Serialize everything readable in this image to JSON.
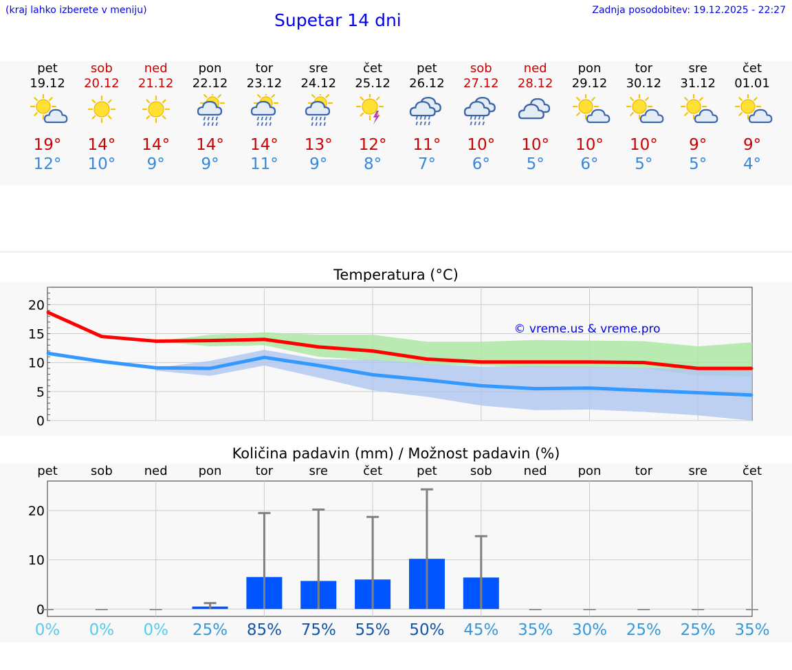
{
  "header": {
    "menu_hint": "(kraj lahko izberete v meniju)",
    "title": "Supetar 14 dni",
    "updated": "Zadnja posodobitev: 19.12.2025 - 22:27"
  },
  "colors": {
    "link": "#0000ee",
    "weekend": "#cc0000",
    "max_temp": "#cc0000",
    "min_temp": "#3388dd",
    "bar": "#0055ff"
  },
  "days": [
    {
      "name": "pet",
      "date": "19.12",
      "weekend": false,
      "icon": "sun-cloud-icon",
      "max": "19°",
      "min": "12°"
    },
    {
      "name": "sob",
      "date": "20.12",
      "weekend": true,
      "icon": "sun-icon",
      "max": "14°",
      "min": "10°"
    },
    {
      "name": "ned",
      "date": "21.12",
      "weekend": true,
      "icon": "sun-icon",
      "max": "14°",
      "min": "9°"
    },
    {
      "name": "pon",
      "date": "22.12",
      "weekend": false,
      "icon": "sun-cloud-rain-icon",
      "max": "14°",
      "min": "9°"
    },
    {
      "name": "tor",
      "date": "23.12",
      "weekend": false,
      "icon": "sun-cloud-rain-icon",
      "max": "14°",
      "min": "11°"
    },
    {
      "name": "sre",
      "date": "24.12",
      "weekend": false,
      "icon": "sun-cloud-rain-icon",
      "max": "13°",
      "min": "9°"
    },
    {
      "name": "čet",
      "date": "25.12",
      "weekend": false,
      "icon": "sun-thunder-icon",
      "max": "12°",
      "min": "8°"
    },
    {
      "name": "pet",
      "date": "26.12",
      "weekend": false,
      "icon": "cloud-rain-icon",
      "max": "11°",
      "min": "7°"
    },
    {
      "name": "sob",
      "date": "27.12",
      "weekend": true,
      "icon": "cloud-rain-icon",
      "max": "10°",
      "min": "6°"
    },
    {
      "name": "ned",
      "date": "28.12",
      "weekend": true,
      "icon": "cloud-icon",
      "max": "10°",
      "min": "5°"
    },
    {
      "name": "pon",
      "date": "29.12",
      "weekend": false,
      "icon": "sun-cloud-icon",
      "max": "10°",
      "min": "6°"
    },
    {
      "name": "tor",
      "date": "30.12",
      "weekend": false,
      "icon": "sun-cloud-icon",
      "max": "10°",
      "min": "5°"
    },
    {
      "name": "sre",
      "date": "31.12",
      "weekend": false,
      "icon": "sun-cloud-icon",
      "max": "9°",
      "min": "5°"
    },
    {
      "name": "čet",
      "date": "01.01",
      "weekend": false,
      "icon": "sun-cloud-icon",
      "max": "9°",
      "min": "4°"
    }
  ],
  "chart_data": [
    {
      "type": "line",
      "title": "Temperatura (°C)",
      "watermark": "© vreme.us & vreme.pro",
      "x": [
        0,
        1,
        2,
        3,
        4,
        5,
        6,
        7,
        8,
        9,
        10,
        11,
        12,
        13
      ],
      "ylim": [
        0,
        23
      ],
      "yticks": [
        0,
        5,
        10,
        15,
        20
      ],
      "grid": true,
      "series": [
        {
          "name": "max",
          "color": "#ff0000",
          "values": [
            18.7,
            14.5,
            13.7,
            13.8,
            14.0,
            12.7,
            12.0,
            10.6,
            10.1,
            10.1,
            10.1,
            10.0,
            9.0,
            9.0
          ]
        },
        {
          "name": "min",
          "color": "#3399ff",
          "values": [
            11.6,
            10.2,
            9.1,
            9.0,
            10.9,
            9.5,
            7.9,
            7.0,
            6.0,
            5.5,
            5.6,
            5.2,
            4.8,
            4.4
          ]
        }
      ],
      "bands": [
        {
          "name": "max-range",
          "color": "#a8e6a0",
          "upper": [
            null,
            null,
            13.7,
            14.8,
            15.2,
            14.8,
            14.8,
            13.6,
            13.6,
            13.9,
            13.8,
            13.7,
            12.8,
            13.5
          ],
          "lower": [
            null,
            null,
            13.7,
            12.8,
            13.0,
            11.0,
            10.4,
            9.7,
            9.5,
            9.2,
            9.2,
            9.0,
            7.8,
            7.6
          ]
        },
        {
          "name": "min-range",
          "color": "#aec6f0",
          "upper": [
            null,
            null,
            9.1,
            10.3,
            12.2,
            10.6,
            10.5,
            9.8,
            9.3,
            9.4,
            9.3,
            9.1,
            8.8,
            8.6
          ],
          "lower": [
            null,
            null,
            8.6,
            7.7,
            9.5,
            7.4,
            5.2,
            4.1,
            2.6,
            1.8,
            1.9,
            1.5,
            0.9,
            0.0
          ]
        }
      ]
    },
    {
      "type": "bar",
      "title": "Količina padavin (mm) / Možnost padavin (%)",
      "categories": [
        "pet",
        "sob",
        "ned",
        "pon",
        "tor",
        "sre",
        "čet",
        "pet",
        "sob",
        "ned",
        "pon",
        "tor",
        "sre",
        "čet"
      ],
      "ylim": [
        -1.5,
        26
      ],
      "yticks": [
        0,
        10,
        20
      ],
      "grid": true,
      "series": [
        {
          "name": "amount_mm",
          "color": "#0055ff",
          "values": [
            0,
            0,
            0,
            0.5,
            6.5,
            5.7,
            6.0,
            10.2,
            6.4,
            0,
            0,
            0,
            0,
            0
          ]
        },
        {
          "name": "max_mm",
          "color": "#808080",
          "values": [
            0,
            0,
            0,
            1.2,
            19.5,
            20.2,
            18.7,
            24.3,
            14.8,
            0,
            0,
            0,
            0,
            0
          ]
        }
      ],
      "probability": [
        "0%",
        "0%",
        "0%",
        "25%",
        "85%",
        "75%",
        "55%",
        "50%",
        "45%",
        "35%",
        "30%",
        "25%",
        "25%",
        "35%"
      ],
      "probability_colors": [
        "#55ccee",
        "#55ccee",
        "#55ccee",
        "#3399dd",
        "#1155aa",
        "#1155aa",
        "#1155aa",
        "#1155aa",
        "#3399dd",
        "#3399dd",
        "#3399dd",
        "#3399dd",
        "#3399dd",
        "#3399dd"
      ]
    }
  ]
}
